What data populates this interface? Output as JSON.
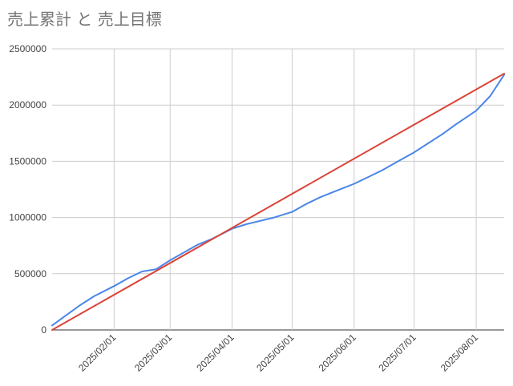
{
  "chart_data": {
    "type": "line",
    "title": "売上累計 と 売上目標",
    "xlabel": "",
    "ylabel": "",
    "x_range": [
      "2025-01-01",
      "2025-08-15"
    ],
    "ylim": [
      0,
      2500000
    ],
    "yticks": [
      0,
      500000,
      1000000,
      1500000,
      2000000,
      2500000
    ],
    "ytick_labels": [
      "0",
      "500000",
      "1000000",
      "1500000",
      "2000000",
      "2500000"
    ],
    "xticks": [
      "2025-02-01",
      "2025-03-01",
      "2025-04-01",
      "2025-05-01",
      "2025-06-01",
      "2025-07-01",
      "2025-08-01"
    ],
    "xtick_labels": [
      "2025/02/01",
      "2025/03/01",
      "2025/04/01",
      "2025/05/01",
      "2025/06/01",
      "2025/07/01",
      "2025/08/01"
    ],
    "grid": true,
    "legend": "none",
    "series": [
      {
        "color": "#4a86e8",
        "x": [
          "2025-01-01",
          "2025-01-08",
          "2025-01-15",
          "2025-01-22",
          "2025-02-01",
          "2025-02-08",
          "2025-02-15",
          "2025-02-22",
          "2025-03-01",
          "2025-03-08",
          "2025-03-15",
          "2025-03-22",
          "2025-04-01",
          "2025-04-08",
          "2025-04-15",
          "2025-04-22",
          "2025-05-01",
          "2025-05-08",
          "2025-05-15",
          "2025-05-22",
          "2025-06-01",
          "2025-06-08",
          "2025-06-15",
          "2025-06-22",
          "2025-07-01",
          "2025-07-08",
          "2025-07-15",
          "2025-07-22",
          "2025-08-01",
          "2025-08-08",
          "2025-08-15"
        ],
        "values": [
          40000,
          130000,
          220000,
          300000,
          390000,
          460000,
          520000,
          540000,
          620000,
          690000,
          760000,
          810000,
          900000,
          940000,
          970000,
          1000000,
          1050000,
          1120000,
          1180000,
          1230000,
          1300000,
          1360000,
          1420000,
          1490000,
          1580000,
          1660000,
          1740000,
          1830000,
          1950000,
          2080000,
          2270000
        ]
      },
      {
        "color": "#db4437",
        "x": [
          "2025-01-01",
          "2025-08-15"
        ],
        "values": [
          0,
          2280000
        ]
      }
    ]
  }
}
